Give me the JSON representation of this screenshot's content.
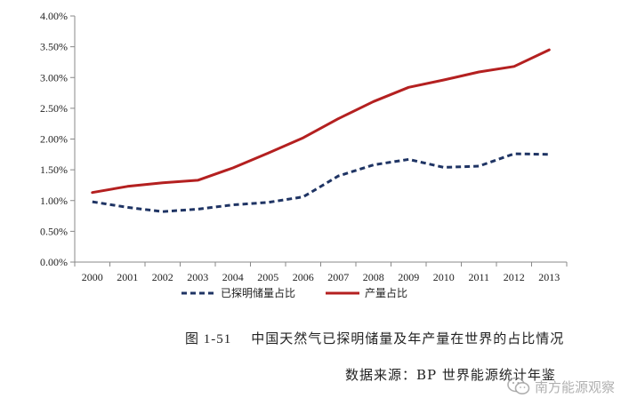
{
  "chart_data": {
    "type": "line",
    "title": "",
    "xlabel": "",
    "ylabel": "",
    "x": [
      "2000",
      "2001",
      "2002",
      "2003",
      "2004",
      "2005",
      "2006",
      "2007",
      "2008",
      "2009",
      "2010",
      "2011",
      "2012",
      "2013"
    ],
    "ylim": [
      0,
      4.0
    ],
    "y_ticks": [
      "0.00%",
      "0.50%",
      "1.00%",
      "1.50%",
      "2.00%",
      "2.50%",
      "3.00%",
      "3.50%",
      "4.00%"
    ],
    "grid": false,
    "legend_position": "bottom",
    "series": [
      {
        "name": "已探明储量占比",
        "style": "dashed",
        "color": "#1f3464",
        "values": [
          0.98,
          0.89,
          0.82,
          0.86,
          0.93,
          0.97,
          1.06,
          1.4,
          1.58,
          1.67,
          1.54,
          1.56,
          1.76,
          1.75
        ]
      },
      {
        "name": "产量占比",
        "style": "solid",
        "color": "#b42020",
        "values": [
          1.13,
          1.23,
          1.29,
          1.33,
          1.53,
          1.77,
          2.02,
          2.33,
          2.61,
          2.84,
          2.96,
          3.09,
          3.18,
          3.45
        ]
      }
    ]
  },
  "caption": {
    "figure_number": "图 1-51",
    "text": "中国天然气已探明储量及年产量在世界的占比情况"
  },
  "source": "数据来源：BP 世界能源统计年鉴",
  "watermark": {
    "text": "南方能源观察",
    "icon": "wechat-icon"
  }
}
